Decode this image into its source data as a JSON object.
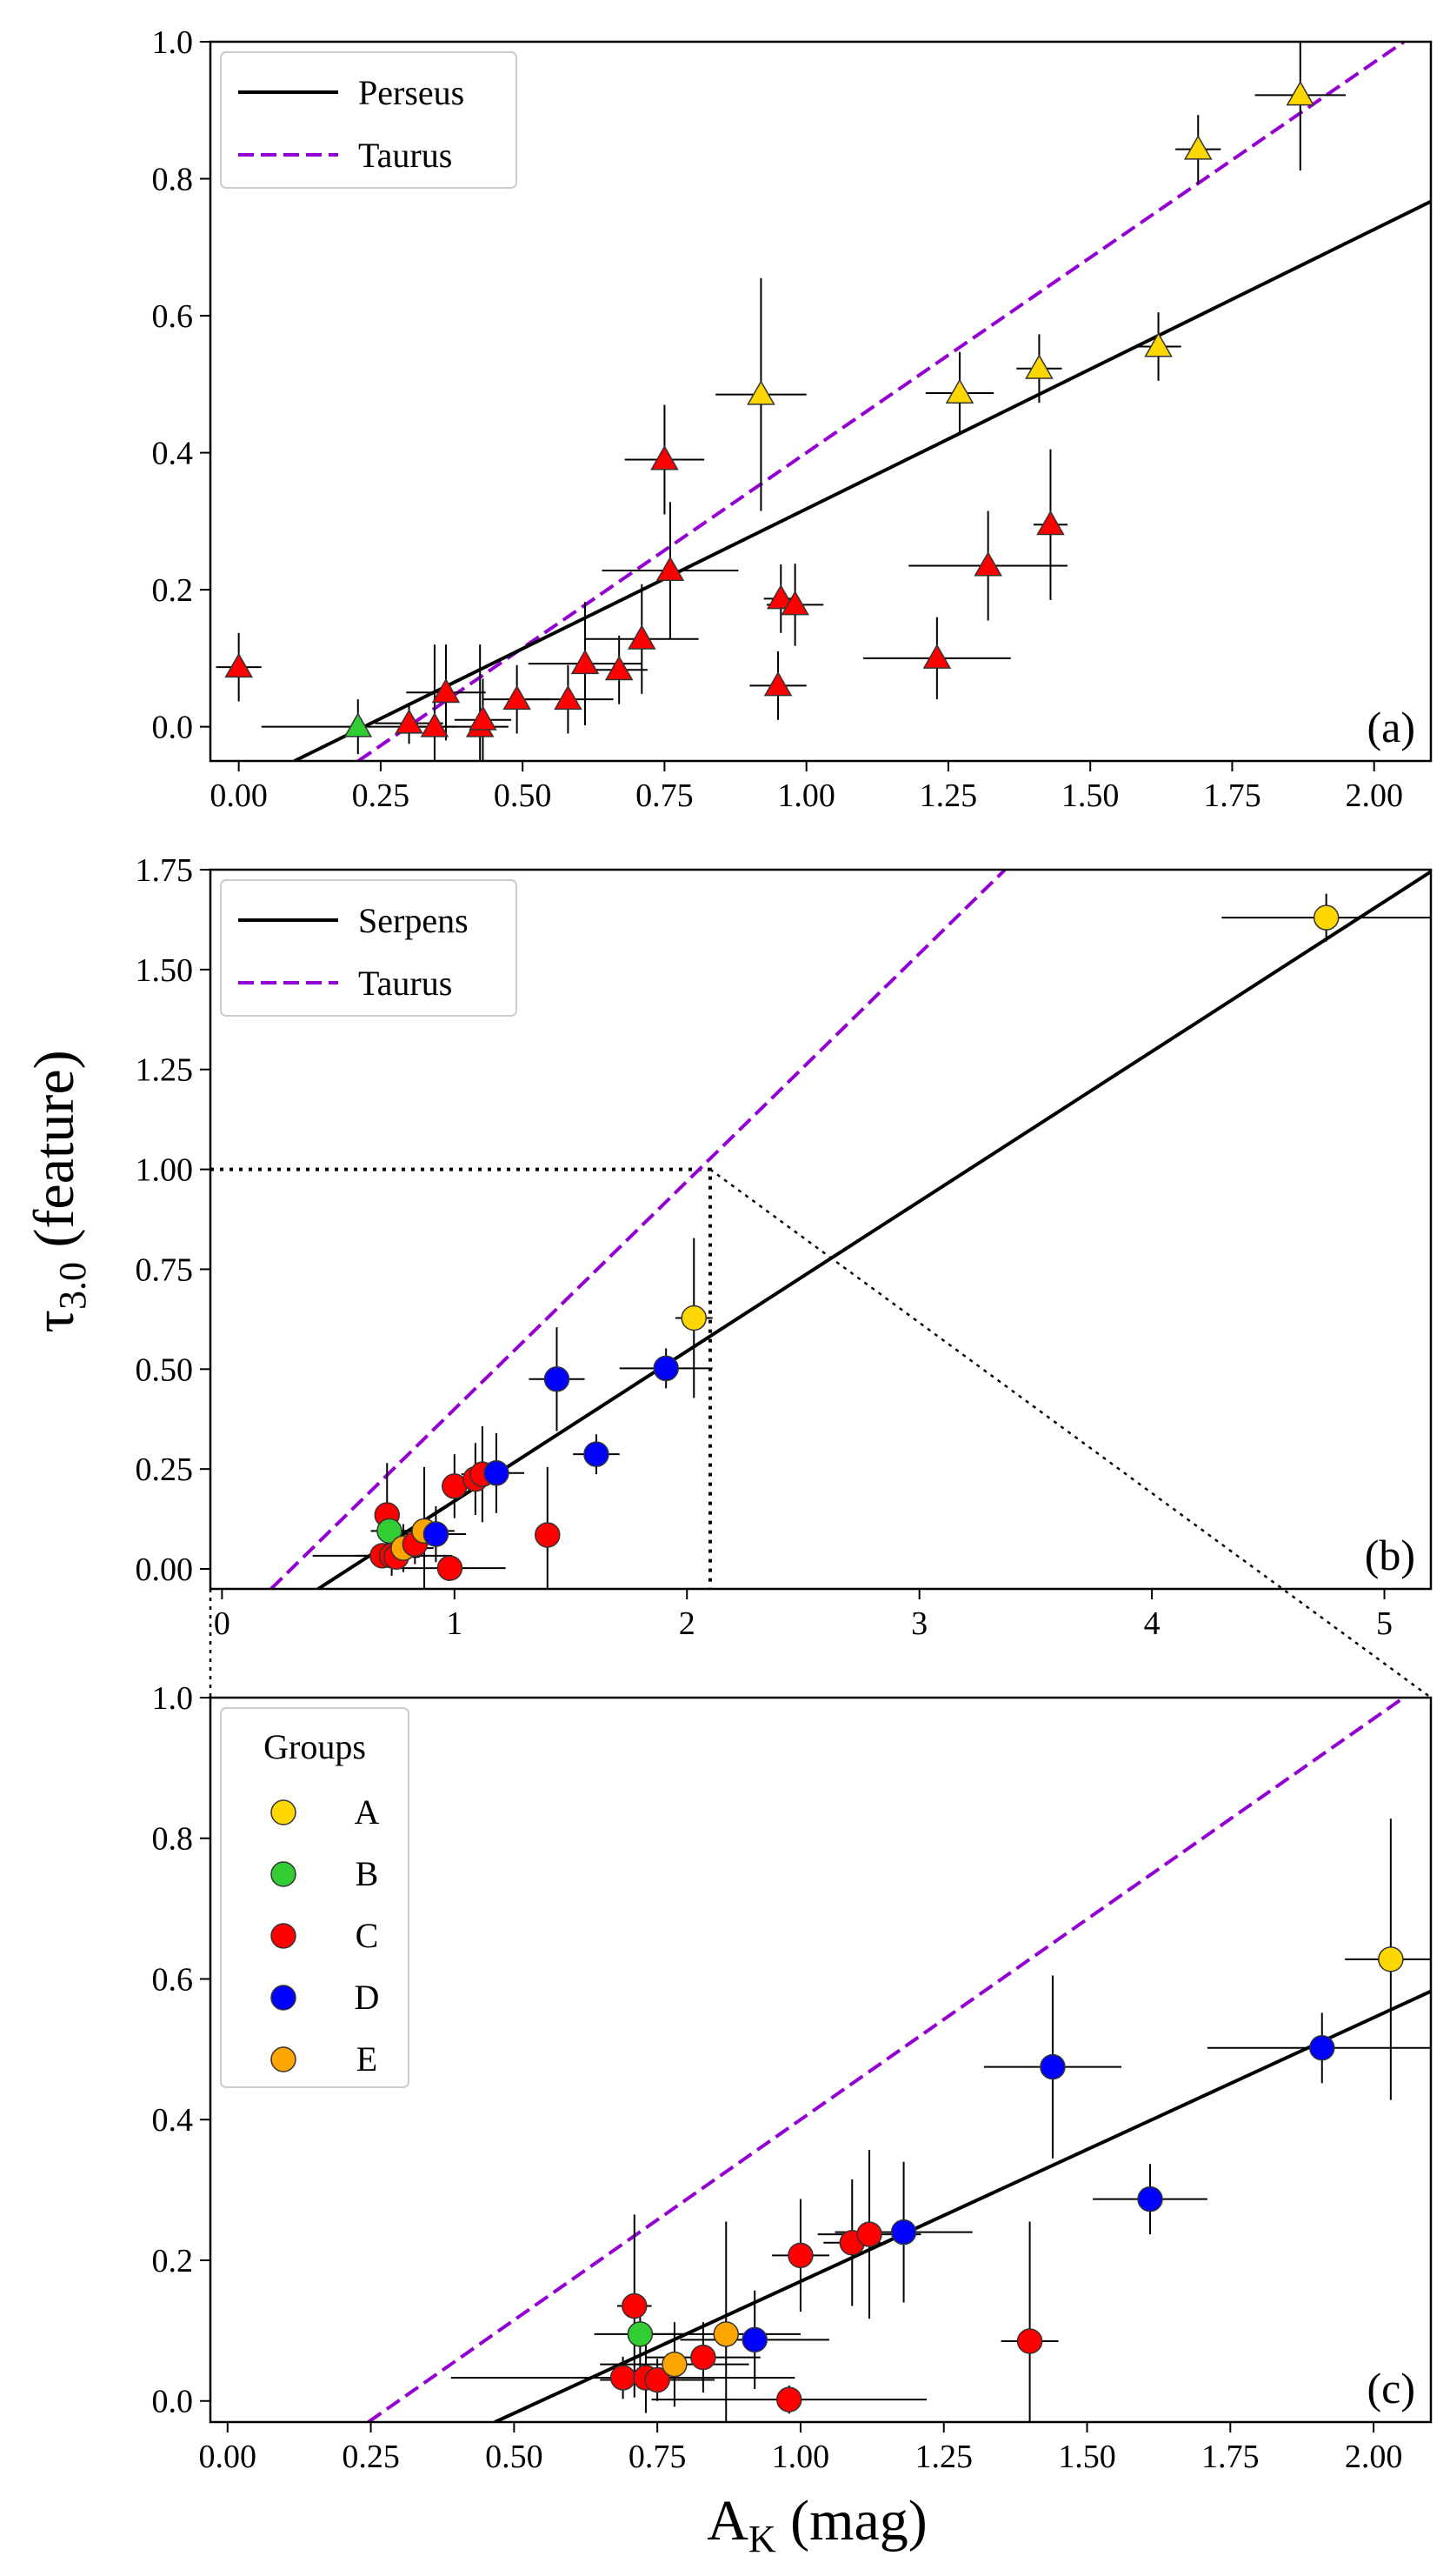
{
  "chart_data": {
    "type": "scatter",
    "ylabel_main": "τ",
    "ylabel_sub": "3.0",
    "ylabel_rest": " (feature)",
    "xlabel_main": "A",
    "xlabel_sub": "K",
    "xlabel_rest": " (mag)",
    "group_colors": {
      "A": "#FFD700",
      "B": "#32CD32",
      "C": "#FF0000",
      "D": "#0000FF",
      "E": "#FFA500",
      "triangle_green": "#32CD32"
    },
    "line_colors": {
      "fit": "#000000",
      "taurus": "#9400D3"
    },
    "panels": [
      {
        "label": "(a)",
        "xlim": [
          -0.05,
          2.1
        ],
        "ylim": [
          -0.05,
          1.0
        ],
        "xticks": [
          "0.00",
          "0.25",
          "0.50",
          "0.75",
          "1.00",
          "1.25",
          "1.50",
          "1.75",
          "2.00"
        ],
        "xtick_values": [
          0,
          0.25,
          0.5,
          0.75,
          1.0,
          1.25,
          1.5,
          1.75,
          2.0
        ],
        "yticks": [
          "0.0",
          "0.2",
          "0.4",
          "0.6",
          "0.8",
          "1.0"
        ],
        "ytick_values": [
          0,
          0.2,
          0.4,
          0.6,
          0.8,
          1.0
        ],
        "legend": [
          {
            "label": "Perseus",
            "style": "solid"
          },
          {
            "label": "Taurus",
            "style": "dashed"
          }
        ],
        "fit_line": {
          "slope": 0.408,
          "intercept": -0.09
        },
        "taurus_line": {
          "slope": 0.57,
          "intercept": -0.17
        },
        "marker": "triangle",
        "points": [
          {
            "x": 0.0,
            "y": 0.087,
            "xerr": 0.04,
            "yerr": 0.05,
            "g": "C"
          },
          {
            "x": 0.21,
            "y": 0.0,
            "xerr": 0.17,
            "yerr": 0.04,
            "g": "B"
          },
          {
            "x": 0.3,
            "y": 0.005,
            "xerr": 0.06,
            "yerr": 0.03,
            "g": "C"
          },
          {
            "x": 0.345,
            "y": 0.0,
            "xerr": 0.04,
            "yerr": 0.12,
            "g": "C"
          },
          {
            "x": 0.365,
            "y": 0.05,
            "xerr": 0.07,
            "yerr": 0.07,
            "g": "C"
          },
          {
            "x": 0.425,
            "y": 0.0,
            "xerr": 0.05,
            "yerr": 0.12,
            "g": "C"
          },
          {
            "x": 0.43,
            "y": 0.01,
            "xerr": 0.05,
            "yerr": 0.06,
            "g": "C"
          },
          {
            "x": 0.49,
            "y": 0.04,
            "xerr": 0.06,
            "yerr": 0.05,
            "g": "C"
          },
          {
            "x": 0.58,
            "y": 0.04,
            "xerr": 0.08,
            "yerr": 0.05,
            "g": "C"
          },
          {
            "x": 0.61,
            "y": 0.092,
            "xerr": 0.1,
            "yerr": 0.09,
            "g": "C"
          },
          {
            "x": 0.67,
            "y": 0.083,
            "xerr": 0.05,
            "yerr": 0.05,
            "g": "C"
          },
          {
            "x": 0.71,
            "y": 0.128,
            "xerr": 0.1,
            "yerr": 0.08,
            "g": "C"
          },
          {
            "x": 0.75,
            "y": 0.39,
            "xerr": 0.07,
            "yerr": 0.08,
            "g": "C"
          },
          {
            "x": 0.76,
            "y": 0.228,
            "xerr": 0.12,
            "yerr": 0.1,
            "g": "C"
          },
          {
            "x": 0.92,
            "y": 0.485,
            "xerr": 0.08,
            "yerr": 0.17,
            "g": "A"
          },
          {
            "x": 0.95,
            "y": 0.06,
            "xerr": 0.05,
            "yerr": 0.05,
            "g": "C"
          },
          {
            "x": 0.955,
            "y": 0.187,
            "xerr": 0.03,
            "yerr": 0.05,
            "g": "C"
          },
          {
            "x": 0.98,
            "y": 0.178,
            "xerr": 0.05,
            "yerr": 0.06,
            "g": "C"
          },
          {
            "x": 1.23,
            "y": 0.1,
            "xerr": 0.13,
            "yerr": 0.06,
            "g": "C"
          },
          {
            "x": 1.27,
            "y": 0.487,
            "xerr": 0.06,
            "yerr": 0.06,
            "g": "A"
          },
          {
            "x": 1.32,
            "y": 0.235,
            "xerr": 0.14,
            "yerr": 0.08,
            "g": "C"
          },
          {
            "x": 1.41,
            "y": 0.523,
            "xerr": 0.04,
            "yerr": 0.05,
            "g": "A"
          },
          {
            "x": 1.43,
            "y": 0.295,
            "xerr": 0.03,
            "yerr": 0.11,
            "g": "C"
          },
          {
            "x": 1.62,
            "y": 0.555,
            "xerr": 0.04,
            "yerr": 0.05,
            "g": "A"
          },
          {
            "x": 1.69,
            "y": 0.843,
            "xerr": 0.04,
            "yerr": 0.05,
            "g": "A"
          },
          {
            "x": 1.87,
            "y": 0.922,
            "xerr": 0.08,
            "yerr": 0.11,
            "g": "A"
          }
        ]
      },
      {
        "label": "(b)",
        "xlim": [
          -0.05,
          5.2
        ],
        "ylim": [
          -0.05,
          1.75
        ],
        "xticks": [
          "0",
          "1",
          "2",
          "3",
          "4",
          "5"
        ],
        "xtick_values": [
          0,
          1,
          2,
          3,
          4,
          5
        ],
        "yticks": [
          "0.00",
          "0.25",
          "0.50",
          "0.75",
          "1.00",
          "1.25",
          "1.50",
          "1.75"
        ],
        "ytick_values": [
          0,
          0.25,
          0.5,
          0.75,
          1.0,
          1.25,
          1.5,
          1.75
        ],
        "legend": [
          {
            "label": "Serpens",
            "style": "solid"
          },
          {
            "label": "Taurus",
            "style": "dashed"
          }
        ],
        "fit_line": {
          "slope": 0.375,
          "intercept": -0.205
        },
        "taurus_line": {
          "slope": 0.57,
          "intercept": -0.17
        },
        "zoom_box": {
          "x": 2.1,
          "y": 1.0
        },
        "marker": "circle",
        "points": [
          {
            "x": 0.69,
            "y": 0.033,
            "xerr": 0.3,
            "yerr": 0.03,
            "g": "C"
          },
          {
            "x": 0.71,
            "y": 0.135,
            "xerr": 0.03,
            "yerr": 0.13,
            "g": "C"
          },
          {
            "x": 0.72,
            "y": 0.095,
            "xerr": 0.08,
            "yerr": 0.05,
            "g": "B"
          },
          {
            "x": 0.73,
            "y": 0.033,
            "xerr": 0.15,
            "yerr": 0.05,
            "g": "C"
          },
          {
            "x": 0.75,
            "y": 0.03,
            "xerr": 0.1,
            "yerr": 0.03,
            "g": "C"
          },
          {
            "x": 0.78,
            "y": 0.052,
            "xerr": 0.13,
            "yerr": 0.06,
            "g": "E"
          },
          {
            "x": 0.83,
            "y": 0.062,
            "xerr": 0.1,
            "yerr": 0.05,
            "g": "C"
          },
          {
            "x": 0.87,
            "y": 0.095,
            "xerr": 0.13,
            "yerr": 0.16,
            "g": "E"
          },
          {
            "x": 0.92,
            "y": 0.087,
            "xerr": 0.13,
            "yerr": 0.07,
            "g": "D"
          },
          {
            "x": 0.98,
            "y": 0.002,
            "xerr": 0.24,
            "yerr": 0.02,
            "g": "C"
          },
          {
            "x": 1.0,
            "y": 0.207,
            "xerr": 0.05,
            "yerr": 0.08,
            "g": "C"
          },
          {
            "x": 1.09,
            "y": 0.225,
            "xerr": 0.05,
            "yerr": 0.09,
            "g": "C"
          },
          {
            "x": 1.12,
            "y": 0.237,
            "xerr": 0.09,
            "yerr": 0.12,
            "g": "C"
          },
          {
            "x": 1.18,
            "y": 0.24,
            "xerr": 0.12,
            "yerr": 0.1,
            "g": "D"
          },
          {
            "x": 1.4,
            "y": 0.085,
            "xerr": 0.05,
            "yerr": 0.17,
            "g": "C"
          },
          {
            "x": 1.44,
            "y": 0.475,
            "xerr": 0.12,
            "yerr": 0.13,
            "g": "D"
          },
          {
            "x": 1.61,
            "y": 0.287,
            "xerr": 0.1,
            "yerr": 0.05,
            "g": "D"
          },
          {
            "x": 1.91,
            "y": 0.502,
            "xerr": 0.2,
            "yerr": 0.05,
            "g": "D"
          },
          {
            "x": 2.03,
            "y": 0.628,
            "xerr": 0.08,
            "yerr": 0.2,
            "g": "A"
          },
          {
            "x": 4.75,
            "y": 1.63,
            "xerr": 0.45,
            "yerr": 0.06,
            "g": "A"
          }
        ]
      },
      {
        "label": "(c)",
        "xlim": [
          -0.03,
          2.1
        ],
        "ylim": [
          -0.03,
          1.0
        ],
        "xticks": [
          "0.00",
          "0.25",
          "0.50",
          "0.75",
          "1.00",
          "1.25",
          "1.50",
          "1.75",
          "2.00"
        ],
        "xtick_values": [
          0,
          0.25,
          0.5,
          0.75,
          1.0,
          1.25,
          1.5,
          1.75,
          2.0
        ],
        "yticks": [
          "0.0",
          "0.2",
          "0.4",
          "0.6",
          "0.8",
          "1.0"
        ],
        "ytick_values": [
          0,
          0.2,
          0.4,
          0.6,
          0.8,
          1.0
        ],
        "legend_title": "Groups",
        "legend": [
          {
            "label": "A",
            "group": "A"
          },
          {
            "label": "B",
            "group": "B"
          },
          {
            "label": "C",
            "group": "C"
          },
          {
            "label": "D",
            "group": "D"
          },
          {
            "label": "E",
            "group": "E"
          }
        ],
        "fit_line": {
          "slope": 0.375,
          "intercept": -0.205
        },
        "taurus_line": {
          "slope": 0.57,
          "intercept": -0.17
        },
        "marker": "circle",
        "points_ref": "same as panel (b) within axes limits"
      }
    ]
  }
}
